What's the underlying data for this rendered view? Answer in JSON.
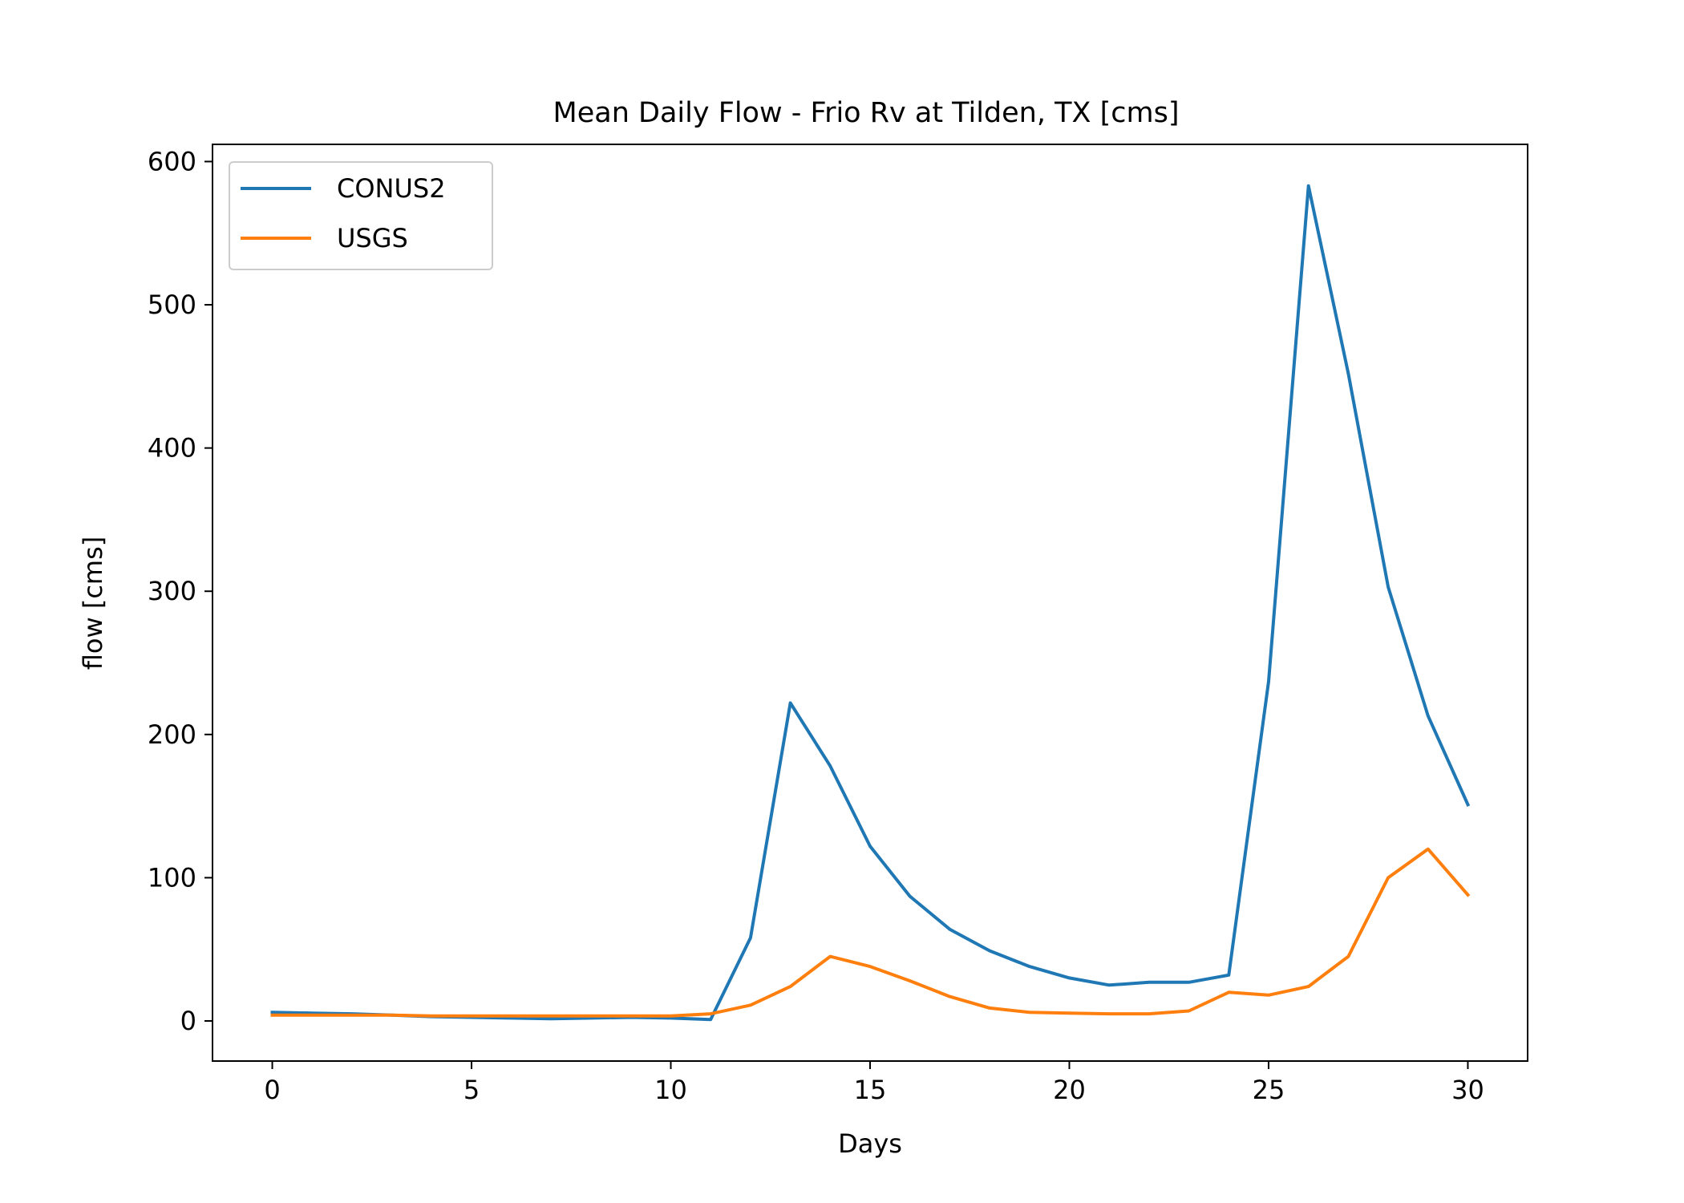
{
  "chart_data": {
    "type": "line",
    "title": "Mean Daily Flow - Frio Rv at Tilden, TX [cms]",
    "xlabel": "Days",
    "ylabel": "flow [cms]",
    "xlim": [
      -1.5,
      31.5
    ],
    "ylim": [
      -28,
      612
    ],
    "xticks": [
      0,
      5,
      10,
      15,
      20,
      25,
      30
    ],
    "yticks": [
      0,
      100,
      200,
      300,
      400,
      500,
      600
    ],
    "grid": false,
    "legend_position": "top-left",
    "x": [
      0,
      1,
      2,
      3,
      4,
      5,
      6,
      7,
      8,
      9,
      10,
      11,
      12,
      13,
      14,
      15,
      16,
      17,
      18,
      19,
      20,
      21,
      22,
      23,
      24,
      25,
      26,
      27,
      28,
      29,
      30
    ],
    "series": [
      {
        "name": "CONUS2",
        "color": "#1f77b4",
        "values": [
          6,
          5.5,
          5,
          4,
          3,
          2.5,
          2,
          1.5,
          2,
          2.5,
          2,
          1,
          58,
          222,
          178,
          122,
          87,
          64,
          49,
          38,
          30,
          25,
          27,
          27,
          32,
          237,
          583,
          452,
          303,
          213,
          151
        ]
      },
      {
        "name": "USGS",
        "color": "#ff7f0e",
        "values": [
          4,
          4,
          4,
          4,
          3.5,
          3.5,
          3.5,
          3.5,
          3.5,
          3.5,
          3.5,
          5,
          11,
          24,
          45,
          38,
          28,
          17,
          9,
          6,
          5.5,
          5,
          5,
          7,
          20,
          18,
          24,
          45,
          100,
          120,
          88
        ]
      }
    ]
  }
}
